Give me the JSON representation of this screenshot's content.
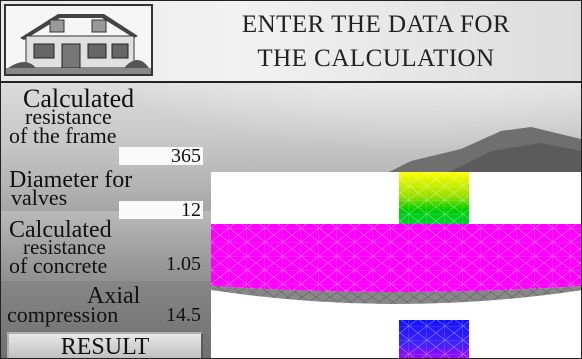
{
  "header": {
    "title_line1": "ENTER THE DATA FOR",
    "title_line2": "THE CALCULATION",
    "logo_icon": "house-icon"
  },
  "form": {
    "field1": {
      "label_line1": "Calculated",
      "label_line2": "resistance",
      "label_line3": "of the frame",
      "value": "365"
    },
    "field2": {
      "label_line1": "Diameter for",
      "label_line2": "valves",
      "value": "12"
    },
    "field3": {
      "label_line1": "Calculated",
      "label_line2": "resistance",
      "label_line3": "of concrete",
      "value": "1.05"
    },
    "field4": {
      "label_line1": "Axial",
      "label_line2": "compression",
      "value": "14.5"
    },
    "result_button": "RESULT"
  },
  "visualization": {
    "column_top_colors": [
      "#ffff00",
      "#00cc00"
    ],
    "slab_color": "#ff00ff",
    "column_bottom_colors": [
      "#2020ff",
      "#aa00ff"
    ]
  }
}
